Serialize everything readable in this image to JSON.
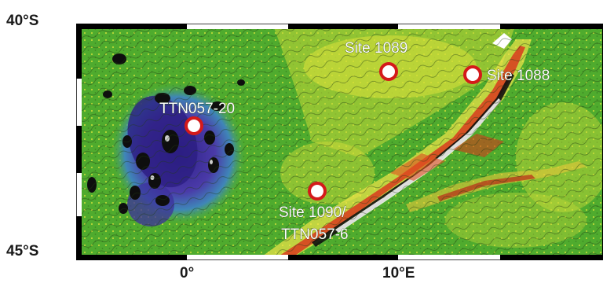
{
  "latitude_labels": {
    "north": "40°S",
    "south": "45°S"
  },
  "longitude_labels": {
    "west": "0°",
    "east": "10°E"
  },
  "sites": [
    {
      "id": "ttn057-20",
      "label": "TTN057-20"
    },
    {
      "id": "site-1089",
      "label": "Site 1089"
    },
    {
      "id": "site-1088",
      "label": "Site 1088"
    },
    {
      "id": "site-1090",
      "label_line1": "Site 1090/",
      "label_line2": "TTN057-6"
    }
  ],
  "colors": {
    "site_marker_ring": "#d41a1a",
    "site_marker_fill": "#ffffff",
    "seafloor_deep": "#3a2a8c",
    "seafloor_mid": "#4cae2c",
    "seafloor_shallow": "#e3e63a",
    "ridge_crest": "#d83a1f"
  }
}
